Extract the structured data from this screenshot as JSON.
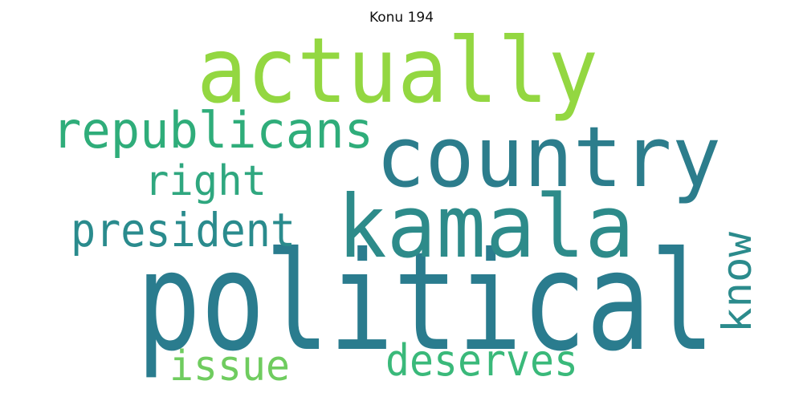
{
  "title": "Konu 194",
  "words": [
    {
      "text": "political",
      "color": "#2a7c8e",
      "weight": 1.0
    },
    {
      "text": "actually",
      "color": "#93d741",
      "weight": 0.78
    },
    {
      "text": "country",
      "color": "#2c7d8c",
      "weight": 0.74
    },
    {
      "text": "kamala",
      "color": "#2d8b8a",
      "weight": 0.72
    },
    {
      "text": "republicans",
      "color": "#2fad7a",
      "weight": 0.44
    },
    {
      "text": "president",
      "color": "#2a8b8d",
      "weight": 0.4
    },
    {
      "text": "right",
      "color": "#2fa77f",
      "weight": 0.38
    },
    {
      "text": "deserves",
      "color": "#3ab97a",
      "weight": 0.38
    },
    {
      "text": "issue",
      "color": "#6fcc5f",
      "weight": 0.38
    },
    {
      "text": "know",
      "color": "#2b8b8c",
      "weight": 0.36
    }
  ]
}
